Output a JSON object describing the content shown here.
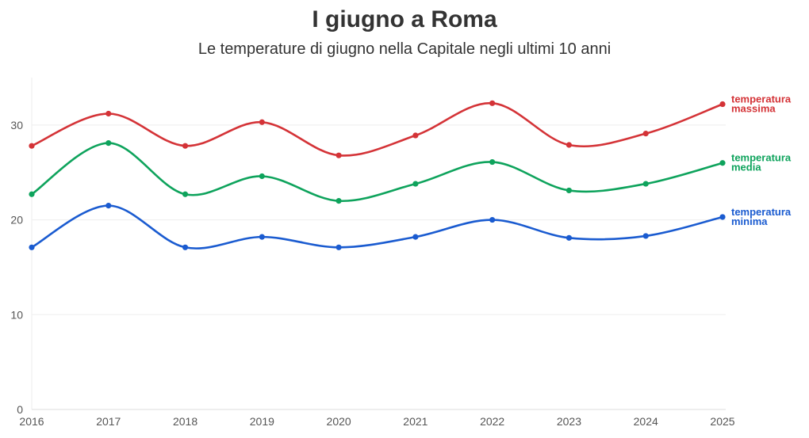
{
  "header": {
    "title": "I giugno a Roma",
    "subtitle": "Le temperature di giugno nella Capitale negli ultimi 10 anni"
  },
  "chart_data": {
    "type": "line",
    "title": "I giugno a Roma",
    "subtitle": "Le temperature di giugno nella Capitale negli ultimi 10 anni",
    "xlabel": "",
    "ylabel": "",
    "x": [
      2016,
      2017,
      2018,
      2019,
      2020,
      2021,
      2022,
      2023,
      2024,
      2025
    ],
    "ylim": [
      0,
      35
    ],
    "yticks": [
      0,
      10,
      20,
      30
    ],
    "grid": true,
    "legend": "inline-right",
    "series": [
      {
        "name_lines": [
          "temperatura",
          "massima"
        ],
        "color": "#d43337",
        "values": [
          27.8,
          31.2,
          27.8,
          30.3,
          26.8,
          28.9,
          32.3,
          27.9,
          29.1,
          32.2
        ]
      },
      {
        "name_lines": [
          "temperatura",
          "media"
        ],
        "color": "#0ea35c",
        "values": [
          22.7,
          28.1,
          22.7,
          24.6,
          22.0,
          23.8,
          26.1,
          23.1,
          23.8,
          26.0
        ]
      },
      {
        "name_lines": [
          "temperatura",
          "minima"
        ],
        "color": "#1a5bd0",
        "values": [
          17.1,
          21.5,
          17.1,
          18.2,
          17.1,
          18.2,
          20.0,
          18.1,
          18.3,
          20.3
        ]
      }
    ]
  }
}
